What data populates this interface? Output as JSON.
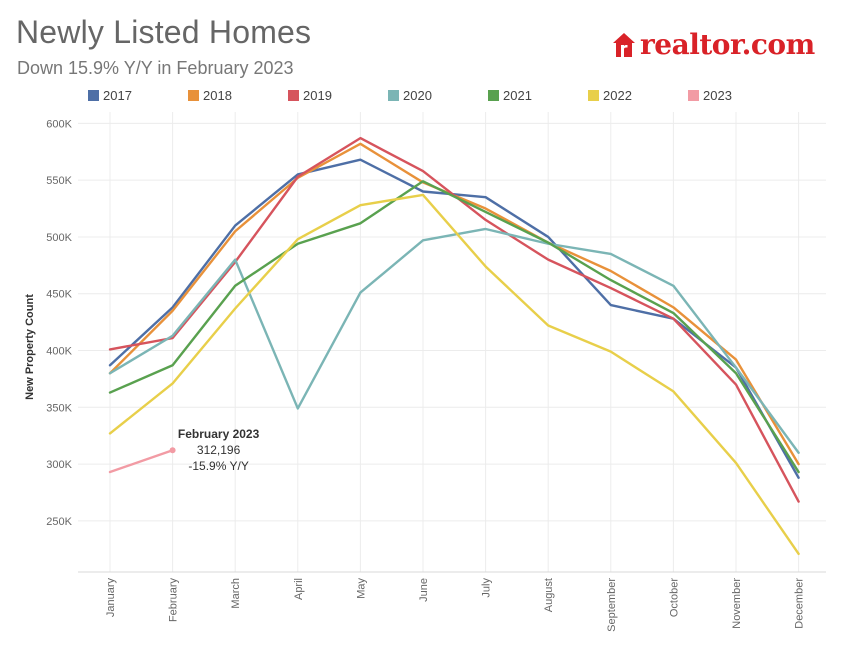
{
  "header": {
    "title": "Newly Listed Homes",
    "subtitle": "Down 15.9% Y/Y in February 2023",
    "brand": "realtor.com"
  },
  "chart_data": {
    "type": "line",
    "title": "Newly Listed Homes",
    "subtitle": "Down 15.9% Y/Y in February 2023",
    "xlabel": "",
    "ylabel": "New Property Count",
    "ylim": [
      205000,
      610000
    ],
    "yticks": [
      250000,
      300000,
      350000,
      400000,
      450000,
      500000,
      550000,
      600000
    ],
    "ytick_labels": [
      "250K",
      "300K",
      "350K",
      "400K",
      "450K",
      "500K",
      "550K",
      "600K"
    ],
    "categories": [
      "January",
      "February",
      "March",
      "April",
      "May",
      "June",
      "July",
      "August",
      "September",
      "October",
      "November",
      "December"
    ],
    "legend_position": "top",
    "series": [
      {
        "name": "2017",
        "color": "#4e6fa6",
        "values": [
          387000,
          438000,
          510000,
          555000,
          568000,
          540000,
          535000,
          500000,
          440000,
          428000,
          385000,
          288000
        ]
      },
      {
        "name": "2018",
        "color": "#e8913a",
        "values": [
          380000,
          435000,
          505000,
          552000,
          582000,
          548000,
          525000,
          495000,
          470000,
          438000,
          392000,
          300000
        ]
      },
      {
        "name": "2019",
        "color": "#d6545d",
        "values": [
          401000,
          411000,
          478000,
          553000,
          587000,
          558000,
          515000,
          480000,
          455000,
          428000,
          370000,
          267000
        ]
      },
      {
        "name": "2020",
        "color": "#7bb5b5",
        "values": [
          380000,
          413000,
          480000,
          349000,
          451000,
          497000,
          507000,
          494000,
          485000,
          457000,
          385000,
          310000
        ]
      },
      {
        "name": "2021",
        "color": "#59a14f",
        "values": [
          363000,
          387000,
          457000,
          494000,
          512000,
          549000,
          522000,
          495000,
          462000,
          433000,
          380000,
          293000
        ]
      },
      {
        "name": "2022",
        "color": "#e8cf4a",
        "values": [
          327000,
          371000,
          437000,
          498000,
          528000,
          537000,
          474000,
          422000,
          399000,
          364000,
          301000,
          221000
        ]
      },
      {
        "name": "2023",
        "color": "#f29ba4",
        "values": [
          293000,
          312196,
          null,
          null,
          null,
          null,
          null,
          null,
          null,
          null,
          null,
          null
        ]
      }
    ],
    "annotation": {
      "title": "February 2023",
      "value": "312,196",
      "change": "-15.9% Y/Y",
      "series": "2023",
      "category": "February"
    }
  }
}
